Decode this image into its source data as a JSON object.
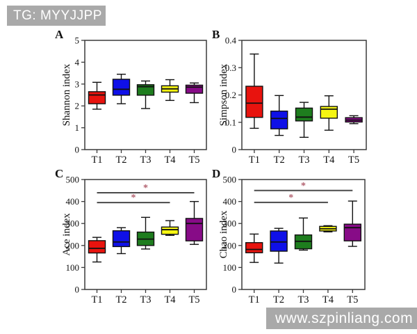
{
  "watermarks": {
    "top_left": "TG: MYYJJPP",
    "bottom_right": "www.szpinliang.com"
  },
  "style": {
    "box_fill_colors": [
      "#e8130e",
      "#0f10e8",
      "#1e7d1e",
      "#f6f613",
      "#870b87"
    ],
    "axis_color": "#3a3a3a",
    "text_color": "#111111",
    "box_stroke_color": "#111111",
    "sig_line_color": "#4a4a4a",
    "sig_star_color": "#b2606e",
    "watermark_bg": "#a9a9a9",
    "watermark_text": "#ffffff"
  },
  "chart_data": [
    {
      "type": "box",
      "panel": "A",
      "ylabel": "Shannon index",
      "categories": [
        "T1",
        "T2",
        "T3",
        "T4",
        "T5"
      ],
      "ylim": [
        0,
        5
      ],
      "yticks": [
        0,
        1,
        2,
        3,
        4,
        5
      ],
      "ytick_labels": [
        "0",
        "1",
        "2",
        "3",
        "4",
        "5"
      ],
      "boxes": [
        {
          "category": "T1",
          "low": 1.85,
          "q1": 2.1,
          "median": 2.5,
          "q3": 2.65,
          "high": 3.08
        },
        {
          "category": "T2",
          "low": 2.1,
          "q1": 2.49,
          "median": 2.76,
          "q3": 3.22,
          "high": 3.45
        },
        {
          "category": "T3",
          "low": 1.88,
          "q1": 2.49,
          "median": 2.88,
          "q3": 2.97,
          "high": 3.14
        },
        {
          "category": "T4",
          "low": 2.25,
          "q1": 2.63,
          "median": 2.78,
          "q3": 2.92,
          "high": 3.2
        },
        {
          "category": "T5",
          "low": 2.15,
          "q1": 2.58,
          "median": 2.86,
          "q3": 2.95,
          "high": 3.05
        }
      ],
      "significance": []
    },
    {
      "type": "box",
      "panel": "B",
      "ylabel": "Simpson index",
      "categories": [
        "T1",
        "T2",
        "T3",
        "T4",
        "T5"
      ],
      "ylim": [
        0,
        0.4
      ],
      "yticks": [
        0,
        0.1,
        0.2,
        0.3,
        0.4
      ],
      "ytick_labels": [
        "0",
        "0.1",
        "0.2",
        "0.3",
        "0.4"
      ],
      "boxes": [
        {
          "category": "T1",
          "low": 0.078,
          "q1": 0.118,
          "median": 0.17,
          "q3": 0.232,
          "high": 0.35
        },
        {
          "category": "T2",
          "low": 0.052,
          "q1": 0.076,
          "median": 0.114,
          "q3": 0.141,
          "high": 0.198
        },
        {
          "category": "T3",
          "low": 0.045,
          "q1": 0.105,
          "median": 0.119,
          "q3": 0.152,
          "high": 0.173
        },
        {
          "category": "T4",
          "low": 0.071,
          "q1": 0.115,
          "median": 0.148,
          "q3": 0.158,
          "high": 0.197
        },
        {
          "category": "T5",
          "low": 0.095,
          "q1": 0.101,
          "median": 0.108,
          "q3": 0.117,
          "high": 0.124
        }
      ],
      "significance": []
    },
    {
      "type": "box",
      "panel": "C",
      "ylabel": "Ace index",
      "categories": [
        "T1",
        "T2",
        "T3",
        "T4",
        "T5"
      ],
      "ylim": [
        0,
        500
      ],
      "yticks": [
        0,
        100,
        200,
        300,
        400,
        500
      ],
      "ytick_labels": [
        "0",
        "100",
        "200",
        "300",
        "400",
        "500"
      ],
      "boxes": [
        {
          "category": "T1",
          "low": 125,
          "q1": 166,
          "median": 187,
          "q3": 222,
          "high": 237
        },
        {
          "category": "T2",
          "low": 163,
          "q1": 195,
          "median": 216,
          "q3": 267,
          "high": 281
        },
        {
          "category": "T3",
          "low": 184,
          "q1": 200,
          "median": 229,
          "q3": 261,
          "high": 328
        },
        {
          "category": "T4",
          "low": 246,
          "q1": 251,
          "median": 272,
          "q3": 284,
          "high": 313
        },
        {
          "category": "T5",
          "low": 205,
          "q1": 221,
          "median": 300,
          "q3": 323,
          "high": 400
        }
      ],
      "significance": [
        {
          "from": "T1",
          "to": "T4",
          "y": 395,
          "label": "*"
        },
        {
          "from": "T1",
          "to": "T5",
          "y": 440,
          "label": "*"
        }
      ]
    },
    {
      "type": "box",
      "panel": "D",
      "ylabel": "Chao index",
      "categories": [
        "T1",
        "T2",
        "T3",
        "T4",
        "T5"
      ],
      "ylim": [
        0,
        500
      ],
      "yticks": [
        0,
        100,
        200,
        300,
        400,
        500
      ],
      "ytick_labels": [
        "0",
        "100",
        "200",
        "300",
        "400",
        "500"
      ],
      "boxes": [
        {
          "category": "T1",
          "low": 123,
          "q1": 167,
          "median": 182,
          "q3": 213,
          "high": 252
        },
        {
          "category": "T2",
          "low": 120,
          "q1": 174,
          "median": 216,
          "q3": 266,
          "high": 278
        },
        {
          "category": "T3",
          "low": 179,
          "q1": 185,
          "median": 219,
          "q3": 248,
          "high": 325
        },
        {
          "category": "T4",
          "low": 262,
          "q1": 266,
          "median": 276,
          "q3": 287,
          "high": 290
        },
        {
          "category": "T5",
          "low": 196,
          "q1": 221,
          "median": 281,
          "q3": 297,
          "high": 402
        }
      ],
      "significance": [
        {
          "from": "T1",
          "to": "T4",
          "y": 396,
          "label": "*"
        },
        {
          "from": "T1",
          "to": "T5",
          "y": 450,
          "label": "*"
        }
      ]
    }
  ]
}
